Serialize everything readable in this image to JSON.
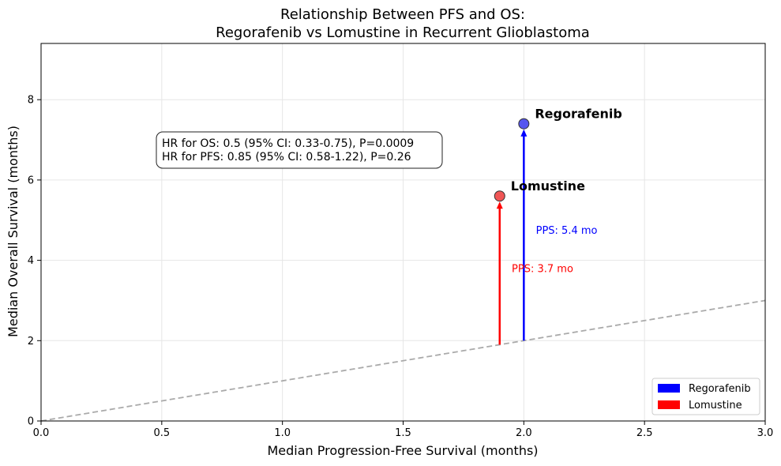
{
  "chart_data": {
    "type": "scatter",
    "title_line1": "Relationship Between PFS and OS:",
    "title_line2": "Regorafenib vs Lomustine in Recurrent Glioblastoma",
    "xlabel": "Median Progression-Free Survival (months)",
    "ylabel": "Median Overall Survival (months)",
    "xlim": [
      0,
      3.0
    ],
    "ylim": [
      0,
      9.4
    ],
    "xticks": [
      0.0,
      0.5,
      1.0,
      1.5,
      2.0,
      2.5,
      3.0
    ],
    "xtick_labels": [
      "0.0",
      "0.5",
      "1.0",
      "1.5",
      "2.0",
      "2.5",
      "3.0"
    ],
    "yticks": [
      0,
      2,
      4,
      6,
      8
    ],
    "ytick_labels": [
      "0",
      "2",
      "4",
      "6",
      "8"
    ],
    "grid": true,
    "reference_line": {
      "style": "dashed",
      "color": "#aaaaaa",
      "x": [
        0,
        3.0
      ],
      "y": [
        0,
        3.0
      ]
    },
    "series": [
      {
        "name": "Regorafenib",
        "color": "#0000ff",
        "point_fill": "#4444ee",
        "pfs": 2.0,
        "os": 7.4,
        "arrow_from": [
          2.0,
          2.0
        ],
        "pps_label": "PPS: 5.4 mo",
        "pps_label_pos": [
          2.05,
          4.75
        ]
      },
      {
        "name": "Lomustine",
        "color": "#ff0000",
        "point_fill": "#ee4444",
        "pfs": 1.9,
        "os": 5.6,
        "arrow_from": [
          1.9,
          1.9
        ],
        "pps_label": "PPS: 3.7 mo",
        "pps_label_pos": [
          1.95,
          3.8
        ]
      }
    ],
    "stats_box": {
      "line1": "HR for OS: 0.5 (95% CI: 0.33-0.75), P=0.0009",
      "line2": "HR for PFS: 0.85 (95% CI: 0.58-1.22), P=0.26"
    },
    "legend": {
      "position": "lower-right",
      "entries": [
        {
          "label": "Regorafenib",
          "color": "#0000ff"
        },
        {
          "label": "Lomustine",
          "color": "#ff0000"
        }
      ]
    }
  }
}
